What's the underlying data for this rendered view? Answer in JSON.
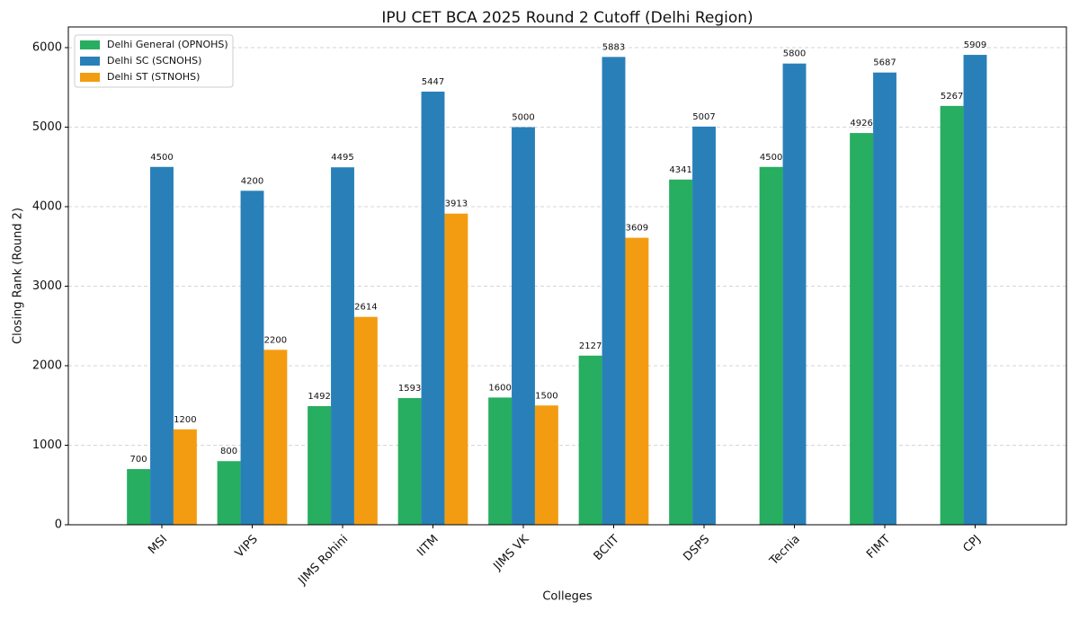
{
  "chart_data": {
    "type": "bar",
    "title": "IPU CET BCA 2025 Round 2 Cutoff (Delhi Region)",
    "x_label": "Colleges",
    "y_label": "Closing Rank (Round 2)",
    "categories": [
      "MSI",
      "VIPS",
      "JIMS Rohini",
      "IITM",
      "JIMS VK",
      "BCIIT",
      "DSPS",
      "Tecnia",
      "FIMT",
      "CPJ"
    ],
    "series": [
      {
        "name": "Delhi General (OPNOHS)",
        "color": "#27ae60",
        "values": [
          700,
          800,
          1492,
          1593,
          1600,
          2127,
          4341,
          4500,
          4926,
          5267
        ]
      },
      {
        "name": "Delhi SC (SCNOHS)",
        "color": "#2980b9",
        "values": [
          4500,
          4200,
          4495,
          5447,
          5000,
          5883,
          5007,
          5800,
          5687,
          5909
        ]
      },
      {
        "name": "Delhi ST (STNOHS)",
        "color": "#f39c12",
        "values": [
          1200,
          2200,
          2614,
          3913,
          1500,
          3609,
          null,
          null,
          null,
          null
        ]
      }
    ],
    "ylim": [
      0,
      6260
    ],
    "yticks": [
      0,
      1000,
      2000,
      3000,
      4000,
      5000,
      6000
    ],
    "grid": true,
    "legend": "upper left"
  }
}
